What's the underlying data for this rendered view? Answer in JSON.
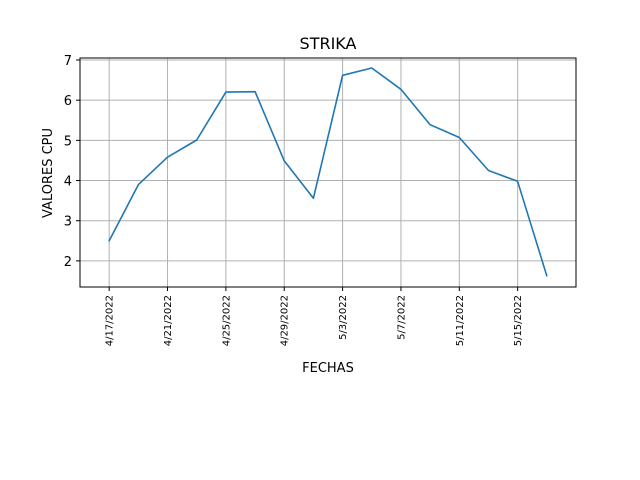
{
  "chart_data": {
    "type": "line",
    "title": "STRIKA",
    "xlabel": "FECHAS",
    "ylabel": "VALORES CPU",
    "grid": true,
    "x_tick_labels": [
      "4/17/2022",
      "4/21/2022",
      "4/25/2022",
      "4/29/2022",
      "5/3/2022",
      "5/7/2022",
      "5/11/2022",
      "5/15/2022"
    ],
    "y_tick_labels": [
      "2",
      "3",
      "4",
      "5",
      "6",
      "7"
    ],
    "xlim": [
      "2022-04-15",
      "2022-05-19"
    ],
    "ylim": [
      1.35,
      7.05
    ],
    "series": [
      {
        "color": "#1f77b4",
        "x": [
          "2022-04-17",
          "2022-04-19",
          "2022-04-21",
          "2022-04-23",
          "2022-04-25",
          "2022-04-27",
          "2022-04-29",
          "2022-05-01",
          "2022-05-03",
          "2022-05-05",
          "2022-05-07",
          "2022-05-09",
          "2022-05-11",
          "2022-05-13",
          "2022-05-15",
          "2022-05-17"
        ],
        "values": [
          2.5,
          3.9,
          4.58,
          5.01,
          6.2,
          6.21,
          4.49,
          3.56,
          6.62,
          6.8,
          6.27,
          5.39,
          5.07,
          4.25,
          3.98,
          1.63
        ]
      }
    ]
  }
}
